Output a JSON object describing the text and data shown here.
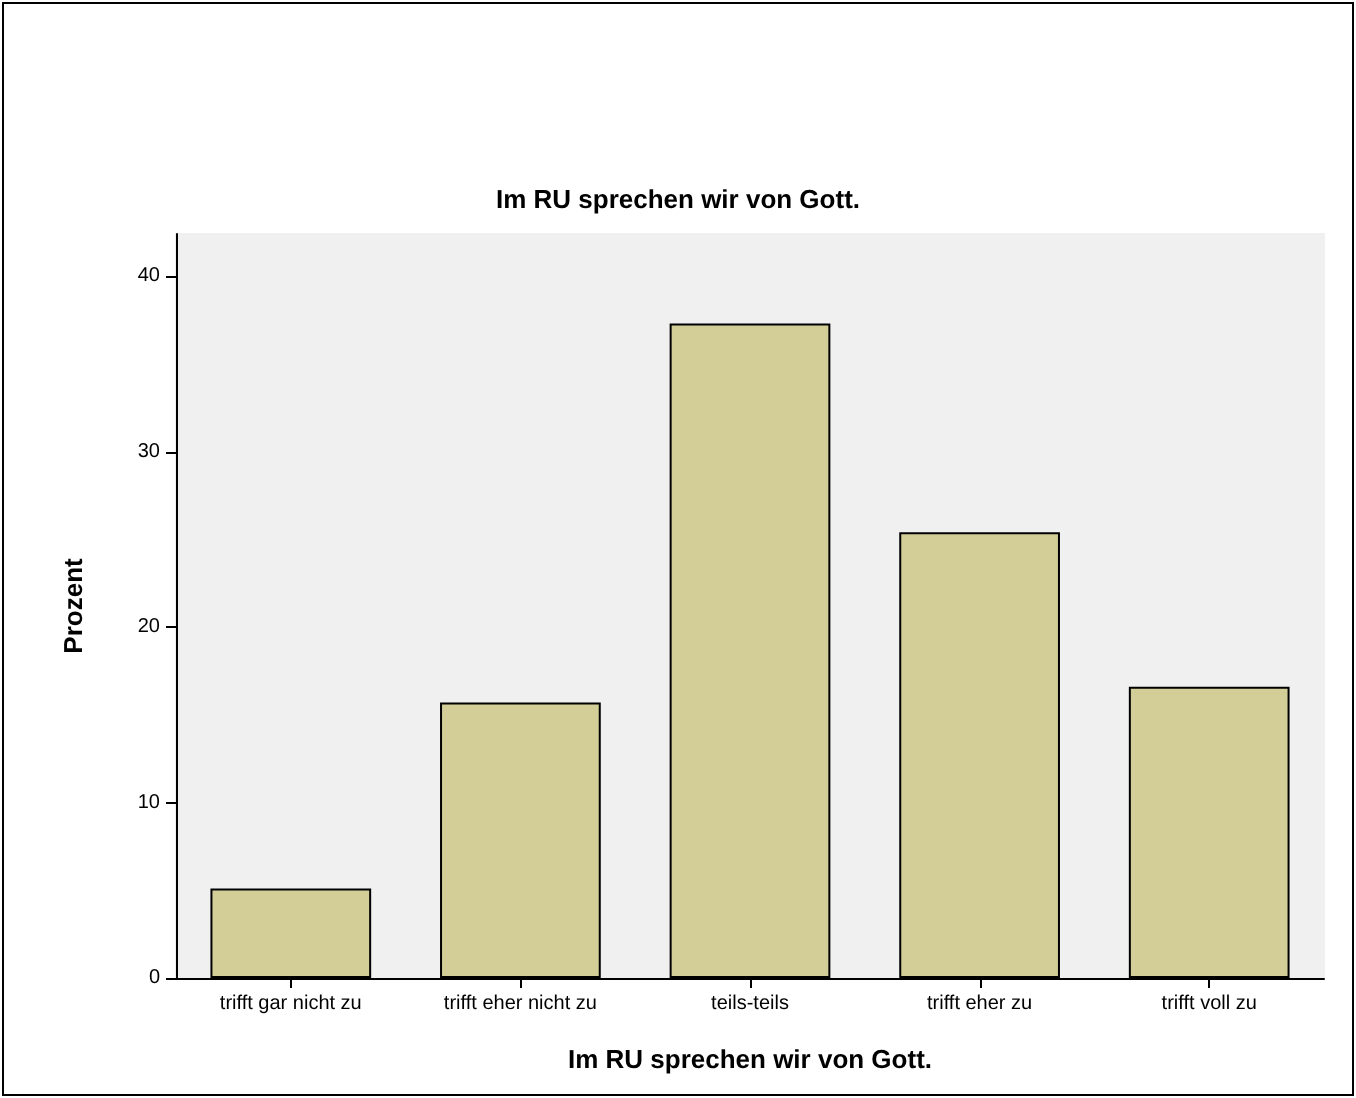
{
  "chart_data": {
    "type": "bar",
    "title": "Im RU sprechen wir von Gott.",
    "xlabel": "Im RU sprechen wir von Gott.",
    "ylabel": "Prozent",
    "categories": [
      "trifft gar nicht zu",
      "trifft eher nicht zu",
      "teils-teils",
      "trifft eher zu",
      "trifft voll zu"
    ],
    "values": [
      5.1,
      15.7,
      37.3,
      25.4,
      16.6
    ],
    "color": "#d3ce98",
    "ylim": [
      0,
      42.4
    ],
    "yticks": [
      0,
      10,
      20,
      30,
      40
    ],
    "grid": false
  }
}
